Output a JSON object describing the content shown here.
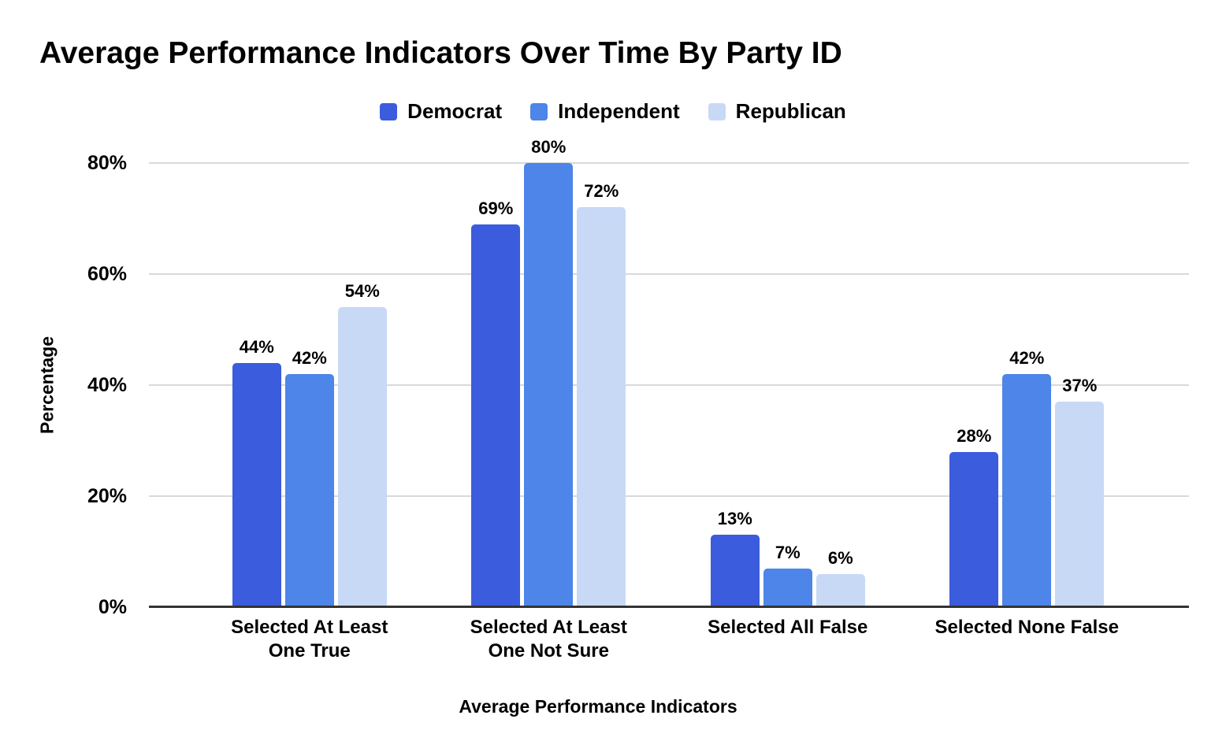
{
  "title": "Average Performance Indicators Over Time By Party ID",
  "chart_data": {
    "type": "bar",
    "title": "Average Performance Indicators Over Time By Party ID",
    "xlabel": "Average Performance Indicators",
    "ylabel": "Percentage",
    "categories": [
      "Selected At Least One True",
      "Selected At Least One Not Sure",
      "Selected All False",
      "Selected None False"
    ],
    "series": [
      {
        "name": "Democrat",
        "color": "#3B5CDC",
        "values": [
          44,
          69,
          13,
          28
        ]
      },
      {
        "name": "Independent",
        "color": "#4D85E8",
        "values": [
          42,
          80,
          7,
          42
        ]
      },
      {
        "name": "Republican",
        "color": "#C8D9F6",
        "values": [
          54,
          72,
          6,
          37
        ]
      }
    ],
    "value_suffix": "%",
    "data_labels": true,
    "ylim": [
      0,
      80
    ],
    "yticks": [
      0,
      20,
      40,
      60,
      80
    ],
    "ytick_labels": [
      "0%",
      "20%",
      "40%",
      "60%",
      "80%"
    ],
    "grid": true,
    "legend_position": "top"
  },
  "colors": {
    "background": "#FFFFFF",
    "gridline": "#D9D9D9",
    "axis_line": "#333333",
    "text": "#000000"
  }
}
